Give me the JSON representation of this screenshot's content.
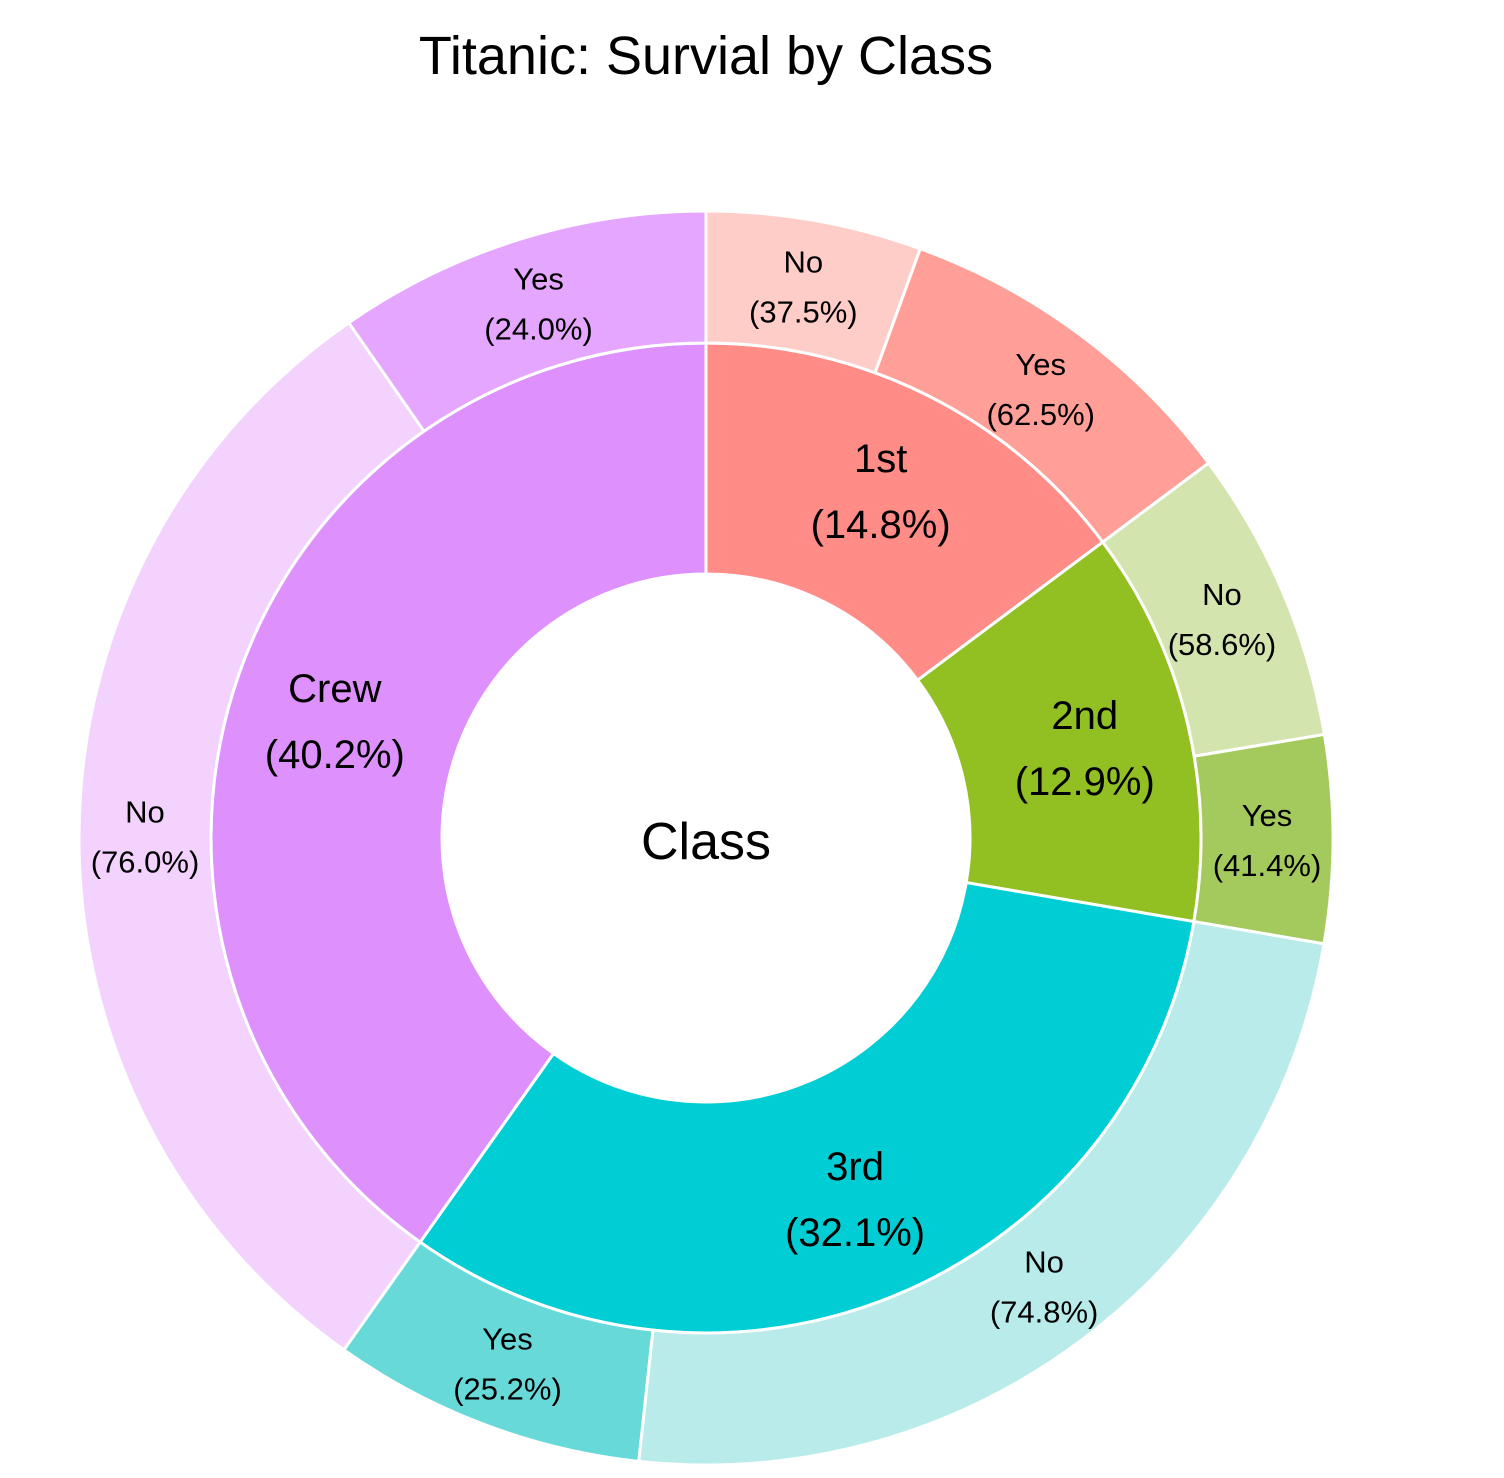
{
  "chart_data": {
    "type": "sunburst",
    "title": "Titanic: Survial by Class",
    "center_label": "Class",
    "inner_ring": [
      {
        "name": "1st",
        "percent_label": "(14.8%)",
        "share": 14.8,
        "color": "#ff8c87"
      },
      {
        "name": "2nd",
        "percent_label": "(12.9%)",
        "share": 12.9,
        "color": "#92c022"
      },
      {
        "name": "3rd",
        "percent_label": "(32.1%)",
        "share": 32.1,
        "color": "#00ced4"
      },
      {
        "name": "Crew",
        "percent_label": "(40.2%)",
        "share": 40.2,
        "color": "#de90fd"
      }
    ],
    "outer_ring": [
      {
        "parent": "1st",
        "name": "No",
        "percent_label": "(37.5%)",
        "share_of_parent": 37.5,
        "color": "#ffcdc8"
      },
      {
        "parent": "1st",
        "name": "Yes",
        "percent_label": "(62.5%)",
        "share_of_parent": 62.5,
        "color": "#ff9f98"
      },
      {
        "parent": "2nd",
        "name": "No",
        "percent_label": "(58.6%)",
        "share_of_parent": 58.6,
        "color": "#d4e4ae"
      },
      {
        "parent": "2nd",
        "name": "Yes",
        "percent_label": "(41.4%)",
        "share_of_parent": 41.4,
        "color": "#a4ca5e"
      },
      {
        "parent": "3rd",
        "name": "No",
        "percent_label": "(74.8%)",
        "share_of_parent": 74.8,
        "color": "#b9ebea"
      },
      {
        "parent": "3rd",
        "name": "Yes",
        "percent_label": "(25.2%)",
        "share_of_parent": 25.2,
        "color": "#67d9d9"
      },
      {
        "parent": "Crew",
        "name": "No",
        "percent_label": "(76.0%)",
        "share_of_parent": 76.0,
        "color": "#f3d2fe"
      },
      {
        "parent": "Crew",
        "name": "Yes",
        "percent_label": "(24.0%)",
        "share_of_parent": 24.0,
        "color": "#e4a6fe"
      }
    ]
  }
}
